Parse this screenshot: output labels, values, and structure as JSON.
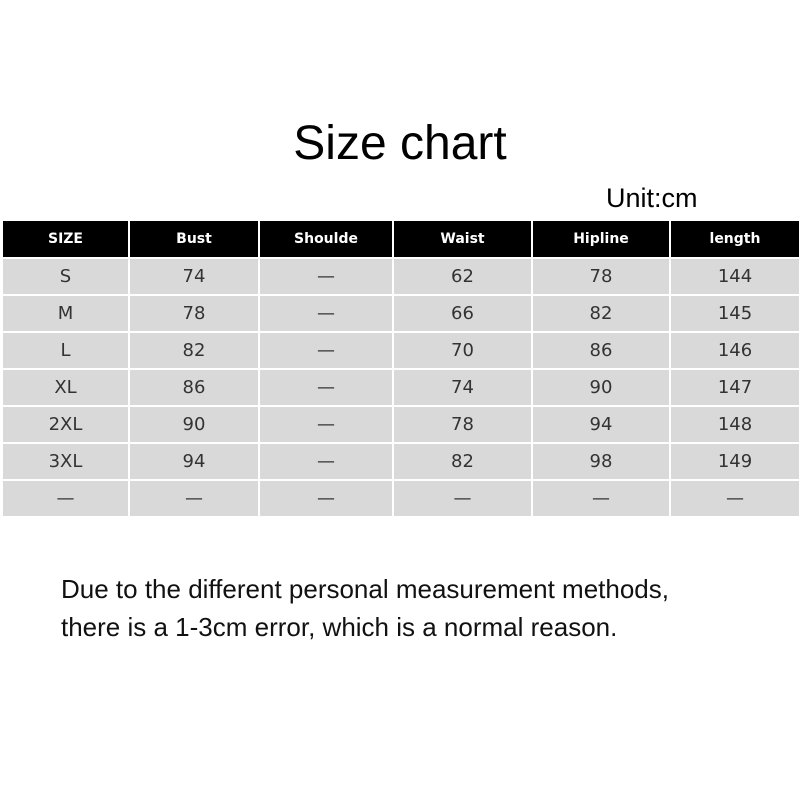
{
  "title": "Size chart",
  "unit": "Unit:cm",
  "table": {
    "headers": [
      "SIZE",
      "Bust",
      "Shoulde",
      "Waist",
      "Hipline",
      "length"
    ],
    "rows": [
      [
        "S",
        "74",
        "—",
        "62",
        "78",
        "144"
      ],
      [
        "M",
        "78",
        "—",
        "66",
        "82",
        "145"
      ],
      [
        "L",
        "82",
        "—",
        "70",
        "86",
        "146"
      ],
      [
        "XL",
        "86",
        "—",
        "74",
        "90",
        "147"
      ],
      [
        "2XL",
        "90",
        "—",
        "78",
        "94",
        "148"
      ],
      [
        "3XL",
        "94",
        "—",
        "82",
        "98",
        "149"
      ],
      [
        "—",
        "—",
        "—",
        "—",
        "—",
        "—"
      ]
    ]
  },
  "note": {
    "line1": "Due to the different personal measurement methods,",
    "line2": "there is a 1-3cm error, which is a normal reason."
  }
}
